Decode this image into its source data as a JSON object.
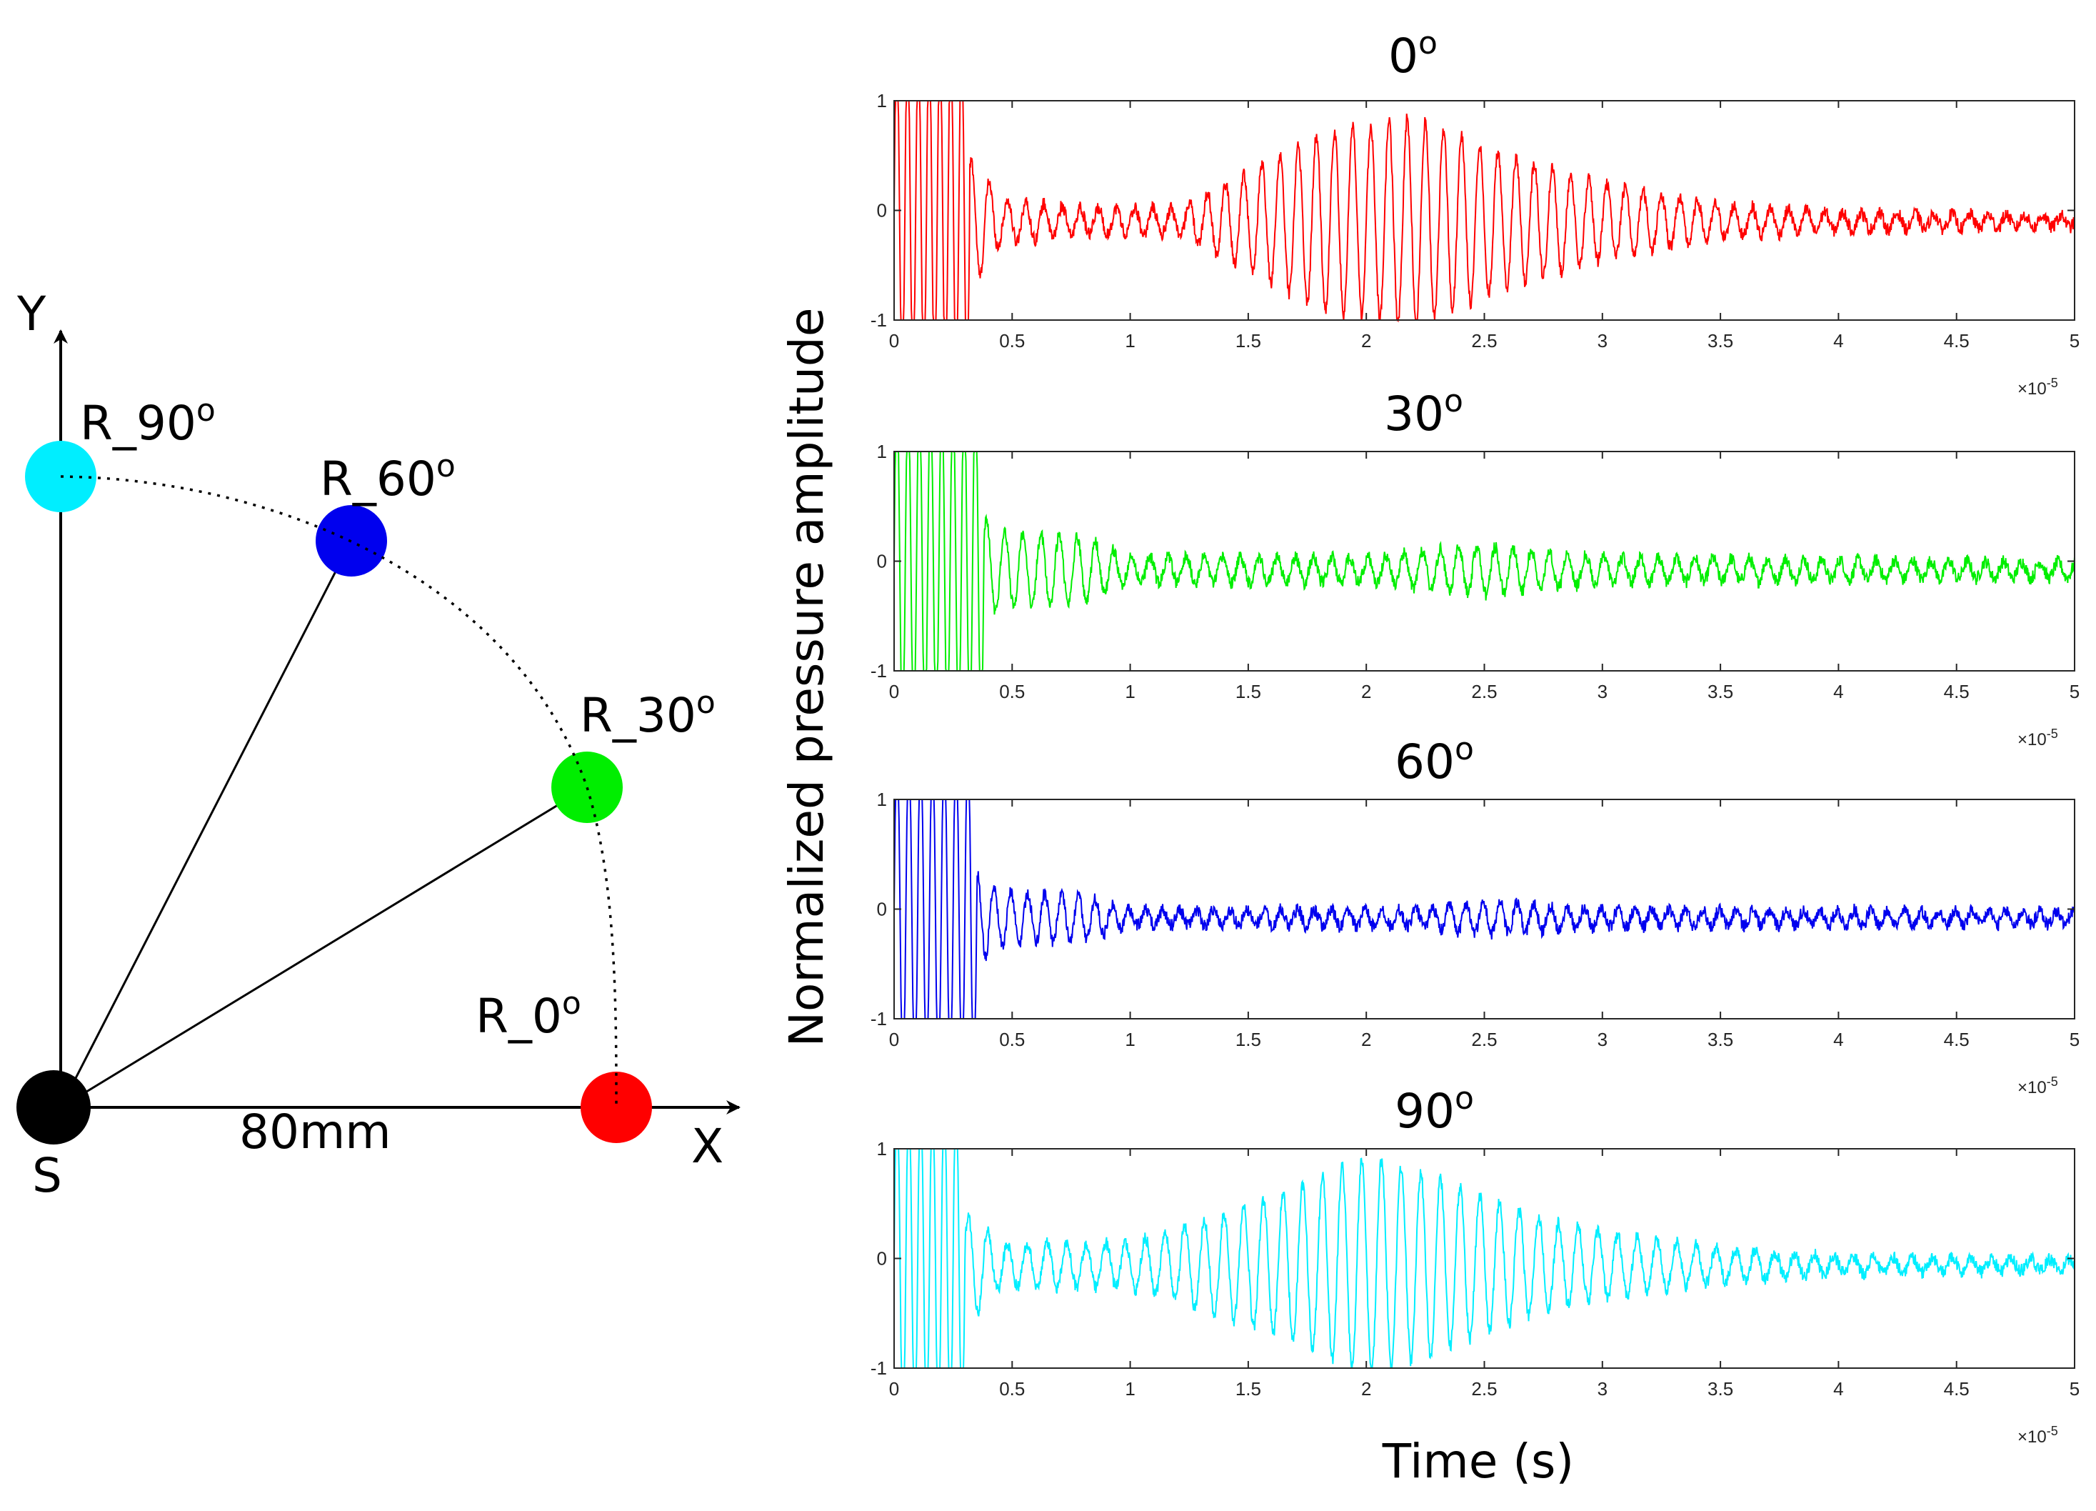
{
  "diagram": {
    "source_label": "S",
    "x_axis_label": "X",
    "y_axis_label": "Y",
    "distance_label": "80mm",
    "receivers": [
      {
        "label": "R_0",
        "sup": "o",
        "color": "#ff0000",
        "angle_deg": 0
      },
      {
        "label": "R_30",
        "sup": "o",
        "color": "#00ee00",
        "angle_deg": 30
      },
      {
        "label": "R_60",
        "sup": "o",
        "color": "#0000ee",
        "angle_deg": 60
      },
      {
        "label": "R_90",
        "sup": "o",
        "color": "#00eeff",
        "angle_deg": 90
      }
    ]
  },
  "chart_data": {
    "type": "line",
    "ylabel": "Normalized pressure amplitude",
    "xlabel": "Time (s)",
    "xlim": [
      0,
      5
    ],
    "ylim": [
      -1,
      1
    ],
    "x_scale_label": "×10",
    "x_scale_exp": "-5",
    "xticks": [
      "0",
      "0.5",
      "1",
      "1.5",
      "2",
      "2.5",
      "3",
      "3.5",
      "4",
      "4.5",
      "5"
    ],
    "yticks": [
      "-1",
      "0",
      "1"
    ],
    "panels": [
      {
        "title": "0",
        "title_sup": "o",
        "color": "#ff0000",
        "direct_pulse": {
          "t_end": 0.32,
          "cycles": 7
        },
        "envelope": [
          [
            0.35,
            0.55
          ],
          [
            0.45,
            0.2
          ],
          [
            0.8,
            0.12
          ],
          [
            1.2,
            0.12
          ],
          [
            1.5,
            0.45
          ],
          [
            1.8,
            0.8
          ],
          [
            2.2,
            0.95
          ],
          [
            2.6,
            0.6
          ],
          [
            3.0,
            0.35
          ],
          [
            3.5,
            0.15
          ],
          [
            4.0,
            0.08
          ],
          [
            5.0,
            0.05
          ]
        ],
        "offset": -0.1,
        "osc_freq": 13
      },
      {
        "title": "30",
        "title_sup": "o",
        "color": "#00ee00",
        "direct_pulse": {
          "t_end": 0.38,
          "cycles": 8
        },
        "envelope": [
          [
            0.35,
            0.5
          ],
          [
            0.45,
            0.35
          ],
          [
            0.8,
            0.3
          ],
          [
            1.0,
            0.12
          ],
          [
            2.0,
            0.12
          ],
          [
            2.5,
            0.22
          ],
          [
            3.0,
            0.12
          ],
          [
            5.0,
            0.07
          ]
        ],
        "offset": -0.08,
        "osc_freq": 13
      },
      {
        "title": "60",
        "title_sup": "o",
        "color": "#0000ee",
        "direct_pulse": {
          "t_end": 0.35,
          "cycles": 7
        },
        "envelope": [
          [
            0.35,
            0.4
          ],
          [
            0.45,
            0.25
          ],
          [
            0.8,
            0.2
          ],
          [
            1.0,
            0.07
          ],
          [
            2.2,
            0.08
          ],
          [
            2.5,
            0.15
          ],
          [
            3.0,
            0.08
          ],
          [
            5.0,
            0.06
          ]
        ],
        "offset": -0.08,
        "osc_freq": 14
      },
      {
        "title": "90",
        "title_sup": "o",
        "color": "#00eeff",
        "direct_pulse": {
          "t_end": 0.3,
          "cycles": 6
        },
        "envelope": [
          [
            0.35,
            0.45
          ],
          [
            0.45,
            0.2
          ],
          [
            1.0,
            0.2
          ],
          [
            1.3,
            0.4
          ],
          [
            1.7,
            0.7
          ],
          [
            2.0,
            1.0
          ],
          [
            2.3,
            0.8
          ],
          [
            2.7,
            0.45
          ],
          [
            3.0,
            0.3
          ],
          [
            3.5,
            0.15
          ],
          [
            4.0,
            0.08
          ],
          [
            5.0,
            0.05
          ]
        ],
        "offset": -0.06,
        "osc_freq": 12
      }
    ]
  }
}
